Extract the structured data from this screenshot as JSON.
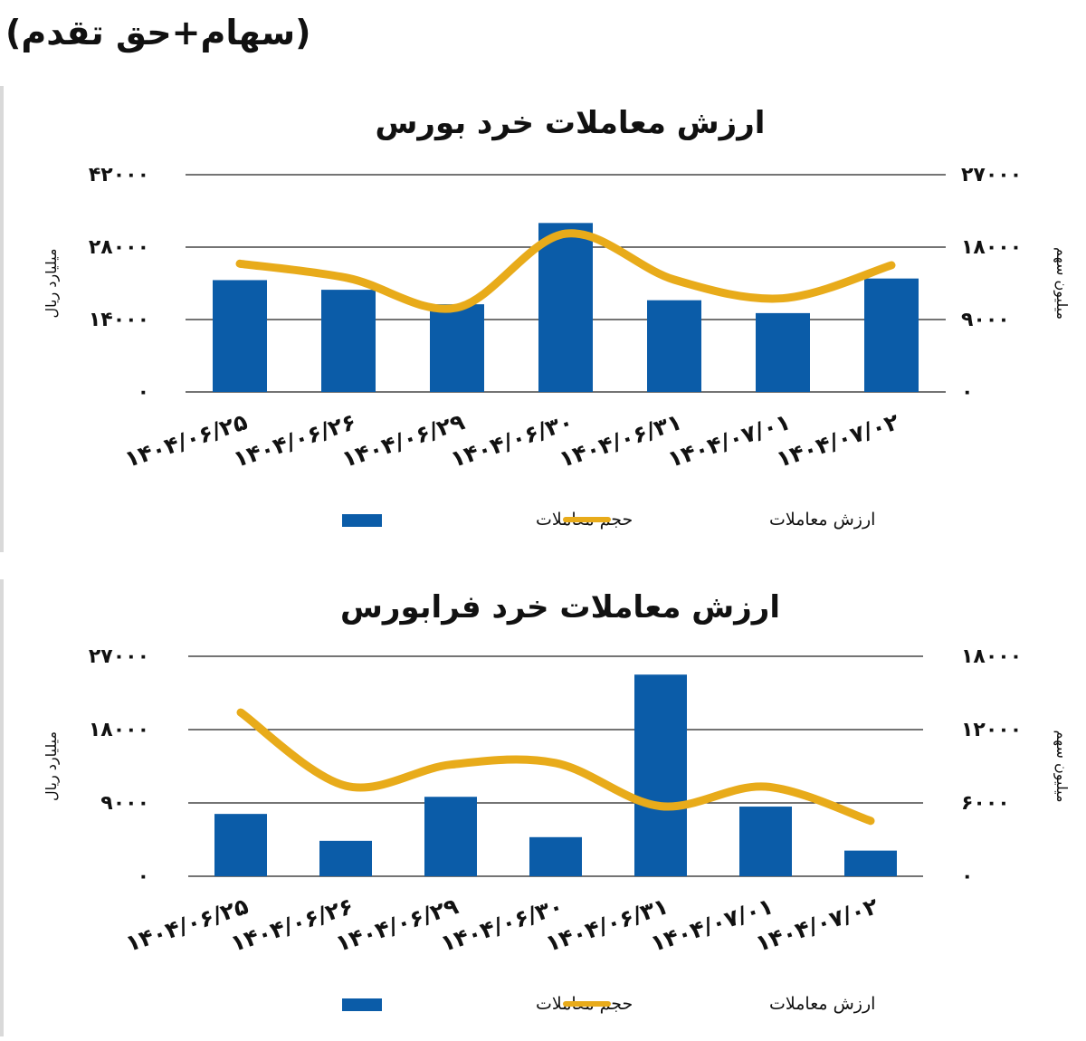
{
  "header": {
    "title": "(سهام+حق تقدم)"
  },
  "colors": {
    "bar": "#0b5ca8",
    "line": "#e8ab1a",
    "grid": "#222222",
    "text": "#111111"
  },
  "chart_data": [
    {
      "type": "bar",
      "title": "ارزش معاملات خرد بورس",
      "categories": [
        "۱۴۰۴/۰۶/۲۵",
        "۱۴۰۴/۰۶/۲۶",
        "۱۴۰۴/۰۶/۲۹",
        "۱۴۰۴/۰۶/۳۰",
        "۱۴۰۴/۰۶/۳۱",
        "۱۴۰۴/۰۷/۰۱",
        "۱۴۰۴/۰۷/۰۲"
      ],
      "ylabel_left": "میلیارد ریال",
      "ylabel_right": "میلیون سهم",
      "ylim_left": [
        0,
        42000
      ],
      "ylim_right": [
        0,
        27000
      ],
      "yticks_left": [
        "۰",
        "۱۴۰۰۰",
        "۲۸۰۰۰",
        "۴۲۰۰۰"
      ],
      "yticks_right": [
        "۰",
        "۹۰۰۰",
        "۱۸۰۰۰",
        "۲۷۰۰۰"
      ],
      "grid": true,
      "legend_position": "bottom",
      "series": [
        {
          "name": "حجم معاملات",
          "kind": "bar",
          "axis": "right",
          "values": [
            13900,
            12700,
            10900,
            21000,
            11400,
            9800,
            14100
          ]
        },
        {
          "name": "ارزش معاملات",
          "kind": "line",
          "axis": "left",
          "values": [
            24800,
            22000,
            16300,
            30600,
            21700,
            18100,
            24500
          ]
        }
      ]
    },
    {
      "type": "bar",
      "title": "ارزش معاملات خرد فرابورس",
      "categories": [
        "۱۴۰۴/۰۶/۲۵",
        "۱۴۰۴/۰۶/۲۶",
        "۱۴۰۴/۰۶/۲۹",
        "۱۴۰۴/۰۶/۳۰",
        "۱۴۰۴/۰۶/۳۱",
        "۱۴۰۴/۰۷/۰۱",
        "۱۴۰۴/۰۷/۰۲"
      ],
      "ylabel_left": "میلیارد ریال",
      "ylabel_right": "میلیون سهم",
      "ylim_left": [
        0,
        27000
      ],
      "ylim_right": [
        0,
        18000
      ],
      "yticks_left": [
        "۰",
        "۹۰۰۰",
        "۱۸۰۰۰",
        "۲۷۰۰۰"
      ],
      "yticks_right": [
        "۰",
        "۶۰۰۰",
        "۱۲۰۰۰",
        "۱۸۰۰۰"
      ],
      "grid": true,
      "legend_position": "bottom",
      "series": [
        {
          "name": "حجم معاملات",
          "kind": "bar",
          "axis": "right",
          "values": [
            5100,
            2900,
            6500,
            3200,
            16500,
            5700,
            2100
          ]
        },
        {
          "name": "ارزش معاملات",
          "kind": "line",
          "axis": "left",
          "values": [
            20100,
            11100,
            13700,
            13900,
            8600,
            11000,
            6800
          ]
        }
      ]
    }
  ]
}
